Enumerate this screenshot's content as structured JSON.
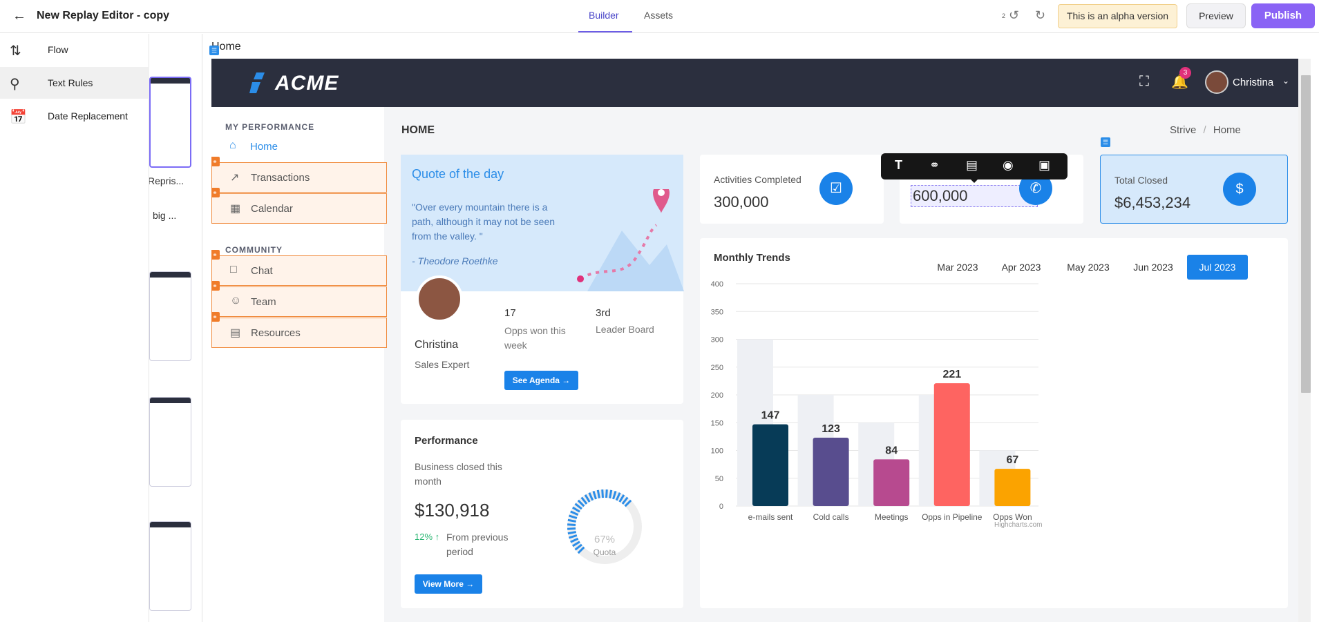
{
  "topbar": {
    "title": "New Replay Editor - copy",
    "tabs": [
      "Builder",
      "Assets"
    ],
    "undo_count": "2",
    "alpha": "This is an alpha version",
    "preview": "Preview",
    "publish": "Publish"
  },
  "left_menu": [
    {
      "label": "Flow",
      "icon": "flow-icon"
    },
    {
      "label": "Text Rules",
      "icon": "search-icon"
    },
    {
      "label": "Date Replacement",
      "icon": "calendar-icon"
    }
  ],
  "thumb_labels": [
    "Repris...",
    "big ..."
  ],
  "canvas": {
    "label": "Home"
  },
  "app": {
    "logo": "ACME",
    "user": "Christina",
    "notifications": "3",
    "sidebar": {
      "section1": "MY PERFORMANCE",
      "section2": "COMMUNITY",
      "items": [
        "Home",
        "Transactions",
        "Calendar",
        "Chat",
        "Team",
        "Resources"
      ]
    },
    "page_title": "HOME",
    "breadcrumb": [
      "Strive",
      "Home"
    ],
    "quote": {
      "title": "Quote of the day",
      "text": "\"Over every mountain there is a path, although it may not be seen from the valley. \"",
      "author": "- Theodore Roethke",
      "name": "Christina",
      "role": "Sales Expert",
      "opps_count": "17",
      "opps_label": "Opps won this week",
      "rank": "3rd",
      "rank_label": "Leader Board",
      "button": "See Agenda"
    },
    "performance": {
      "title": "Performance",
      "subtitle": "Business closed this month",
      "value": "$130,918",
      "change": "12%",
      "change_label": "From previous period",
      "button": "View More",
      "gauge_pct": "67%",
      "gauge_label": "Quota",
      "gauge_value": 0.67
    },
    "stats": [
      {
        "title": "Activities Completed",
        "value": "300,000"
      },
      {
        "title": "",
        "value": "600,000"
      },
      {
        "title": "Total Closed",
        "value": "$6,453,234"
      }
    ],
    "trend": {
      "title": "Monthly Trends",
      "months": [
        "Mar 2023",
        "Apr 2023",
        "May 2023",
        "Jun 2023",
        "Jul 2023"
      ],
      "selected": "Jul 2023",
      "credit": "Highcharts.com"
    }
  },
  "chart_data": {
    "type": "bar",
    "categories": [
      "e-mails sent",
      "Cold calls",
      "Meetings",
      "Opps in Pipeline",
      "Opps Won"
    ],
    "series": [
      {
        "values": [
          300,
          200,
          150,
          200,
          100
        ]
      },
      {
        "values": [
          147,
          123,
          84,
          221,
          67
        ]
      }
    ],
    "colors": [
      "#073b57",
      "#584d8e",
      "#b74a8f",
      "#fe6461",
      "#fba300"
    ],
    "ylim": [
      0,
      400
    ],
    "yticks": [
      0,
      50,
      100,
      150,
      200,
      250,
      300,
      350,
      400
    ]
  }
}
